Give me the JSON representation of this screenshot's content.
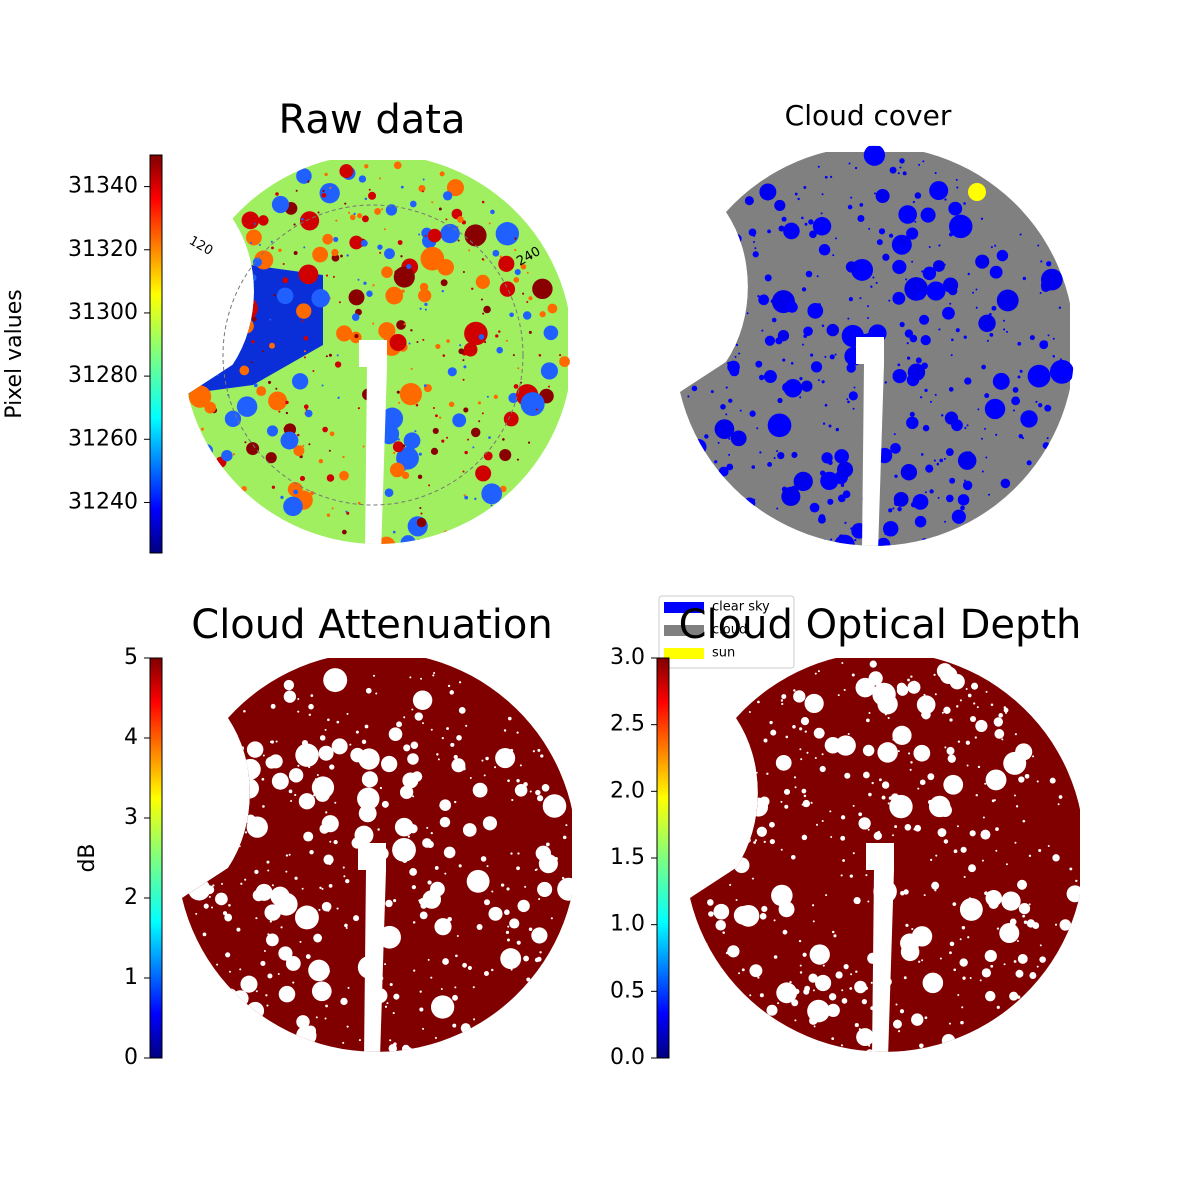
{
  "chart_data": [
    {
      "type": "image",
      "title": "Raw data",
      "colorbar": {
        "label": "Pixel values",
        "ylim": [
          31224,
          31350
        ],
        "yticks": [
          31240,
          31260,
          31280,
          31300,
          31320,
          31340
        ],
        "colormap": "jet"
      },
      "annotations": [
        "120",
        "240"
      ]
    },
    {
      "type": "image",
      "title": "Cloud cover",
      "legend": [
        {
          "name": "clear sky",
          "color": "#0000ff"
        },
        {
          "name": "cloud",
          "color": "#808080"
        },
        {
          "name": "sun",
          "color": "#ffff00"
        }
      ]
    },
    {
      "type": "image",
      "title": "Cloud Attenuation",
      "colorbar": {
        "label": "dB",
        "ylim": [
          0,
          5
        ],
        "yticks": [
          0,
          1,
          2,
          3,
          4,
          5
        ],
        "colormap": "jet"
      }
    },
    {
      "type": "image",
      "title": "Cloud Optical Depth",
      "colorbar": {
        "ylim": [
          0,
          3
        ],
        "yticks": [
          {
            "value": 0,
            "label": "0.0"
          },
          0.5,
          {
            "value": 1,
            "label": "1.0"
          },
          1.5,
          {
            "value": 2,
            "label": "2.0"
          },
          2.5,
          {
            "value": 3,
            "label": "3.0"
          }
        ],
        "colormap": "jet"
      }
    }
  ]
}
